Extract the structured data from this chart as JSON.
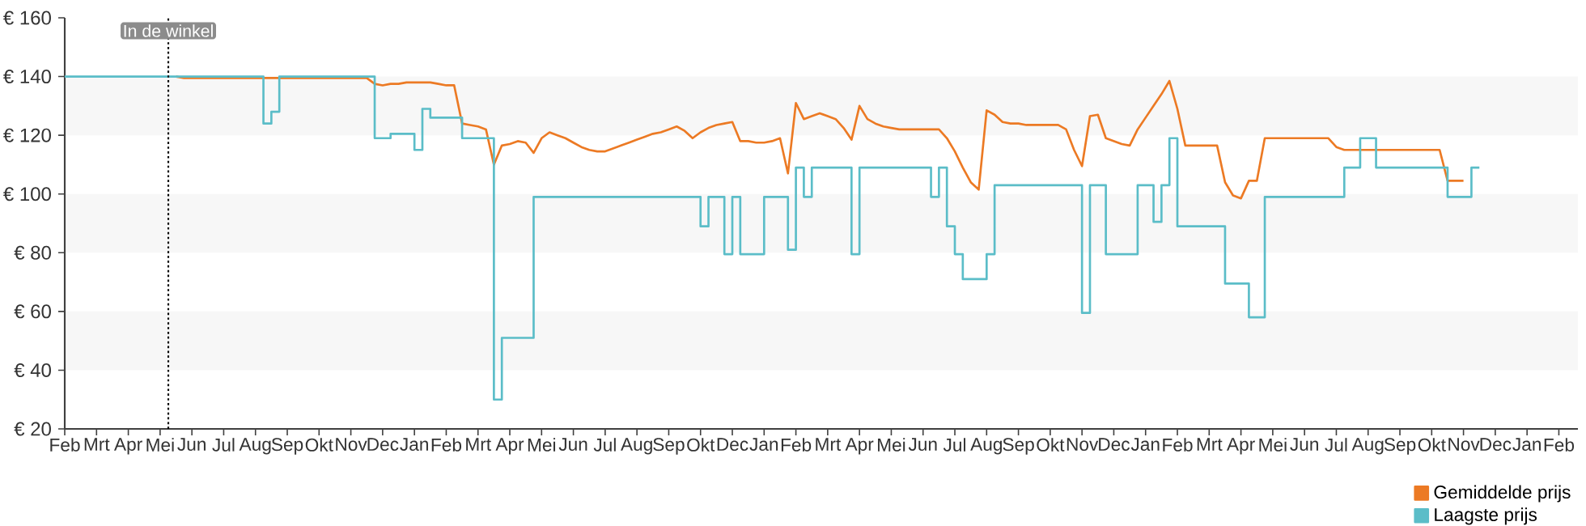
{
  "chart_data": {
    "type": "line",
    "categories": [
      "Feb",
      null,
      null,
      null,
      "Mrt",
      null,
      null,
      null,
      "Apr",
      null,
      null,
      null,
      "Mei",
      null,
      null,
      null,
      "Jun",
      null,
      null,
      null,
      "Jul",
      null,
      null,
      null,
      "Aug",
      null,
      null,
      null,
      "Sep",
      null,
      null,
      null,
      "Okt",
      null,
      null,
      null,
      "Nov",
      null,
      null,
      null,
      "Dec",
      null,
      null,
      null,
      "Jan",
      null,
      null,
      null,
      "Feb",
      null,
      null,
      null,
      "Mrt",
      null,
      null,
      null,
      "Apr",
      null,
      null,
      null,
      "Mei",
      null,
      null,
      null,
      "Jun",
      null,
      null,
      null,
      "Jul",
      null,
      null,
      null,
      "Aug",
      null,
      null,
      null,
      "Sep",
      null,
      null,
      null,
      "Okt",
      null,
      null,
      null,
      "Dec",
      null,
      null,
      null,
      "Jan",
      null,
      null,
      null,
      "Feb",
      null,
      null,
      null,
      "Mrt",
      null,
      null,
      null,
      "Apr",
      null,
      null,
      null,
      "Mei",
      null,
      null,
      null,
      "Jun",
      null,
      null,
      null,
      "Jul",
      null,
      null,
      null,
      "Aug",
      null,
      null,
      null,
      "Sep",
      null,
      null,
      null,
      "Okt",
      null,
      null,
      null,
      "Nov",
      null,
      null,
      null,
      "Dec",
      null,
      null,
      null,
      "Jan",
      null,
      null,
      null,
      "Feb",
      null,
      null,
      null,
      "Mrt",
      null,
      null,
      null,
      "Apr",
      null,
      null,
      null,
      "Mei",
      null,
      null,
      null,
      "Jun",
      null,
      null,
      null,
      "Jul",
      null,
      null,
      null,
      "Aug",
      null,
      null,
      null,
      "Sep",
      null,
      null,
      null,
      "Okt",
      null,
      null,
      null,
      "Nov",
      null,
      null,
      null,
      "Dec",
      null,
      null,
      null,
      "Jan",
      null,
      null,
      null,
      "Feb",
      null,
      null
    ],
    "series": [
      {
        "name": "Gemiddelde prijs",
        "color": "#ec7a24",
        "values": [
          null,
          null,
          null,
          null,
          null,
          null,
          null,
          null,
          null,
          null,
          null,
          null,
          null,
          null,
          140,
          139.5,
          139.5,
          139.5,
          139.5,
          139.5,
          139.5,
          139.5,
          139.5,
          139.5,
          139.5,
          139.5,
          139.5,
          139.5,
          139.5,
          139.5,
          139.5,
          139.5,
          139.5,
          139.5,
          139.5,
          139.5,
          139.5,
          139.5,
          139.5,
          137.5,
          137,
          137.5,
          137.5,
          138,
          138,
          138,
          138,
          137.5,
          137,
          137,
          124,
          123.5,
          123,
          122,
          110,
          116.5,
          117,
          118,
          117.5,
          114,
          119,
          121,
          120,
          119,
          117.5,
          116,
          115,
          114.5,
          114.5,
          115.5,
          116.5,
          117.5,
          118.5,
          119.5,
          120.5,
          121,
          122,
          123,
          121.5,
          119,
          121,
          122.5,
          123.5,
          124,
          124.5,
          118,
          118,
          117.5,
          117.5,
          118,
          119,
          107,
          131,
          125.5,
          126.5,
          127.5,
          126.5,
          125.5,
          122.5,
          118.5,
          130,
          125.5,
          124,
          123,
          122.5,
          122,
          122,
          122,
          122,
          122,
          122,
          119,
          114.5,
          109,
          104,
          101.5,
          128.5,
          127,
          124.5,
          124,
          124,
          123.5,
          123.5,
          123.5,
          123.5,
          123.5,
          122,
          115,
          109.5,
          126.5,
          127,
          119,
          118,
          117,
          116.5,
          122,
          126,
          130,
          134,
          138.5,
          129,
          116.5,
          116.5,
          116.5,
          116.5,
          116.5,
          104,
          99.5,
          98.5,
          104.5,
          104.5,
          119,
          119,
          119,
          119,
          119,
          119,
          119,
          119,
          119,
          116,
          115,
          115,
          115,
          115,
          115,
          115,
          115,
          115,
          115,
          115,
          115,
          115,
          115,
          104.5,
          104.5,
          104.5,
          null,
          null,
          null,
          null,
          null,
          null,
          null,
          null,
          null,
          null,
          null,
          null,
          null,
          null
        ]
      },
      {
        "name": "Laagste prijs",
        "type": "step",
        "color": "#5bbdc8",
        "values": [
          140,
          140,
          140,
          140,
          140,
          140,
          140,
          140,
          140,
          140,
          140,
          140,
          140,
          140,
          140,
          140,
          140,
          140,
          140,
          140,
          140,
          140,
          140,
          140,
          140,
          124,
          128,
          140,
          140,
          140,
          140,
          140,
          140,
          140,
          140,
          140,
          140,
          140,
          140,
          119,
          119,
          120.5,
          120.5,
          120.5,
          115,
          129,
          126,
          126,
          126,
          126,
          119,
          119,
          119,
          119,
          30,
          51,
          51,
          51,
          51,
          99,
          99,
          99,
          99,
          99,
          99,
          99,
          99,
          99,
          99,
          99,
          99,
          99,
          99,
          99,
          99,
          99,
          99,
          99,
          99,
          99,
          89,
          99,
          99,
          79.5,
          99,
          79.5,
          79.5,
          79.5,
          99,
          99,
          99,
          81,
          109,
          99,
          109,
          109,
          109,
          109,
          109,
          79.5,
          109,
          109,
          109,
          109,
          109,
          109,
          109,
          109,
          109,
          99,
          109,
          89,
          79.5,
          71,
          71,
          71,
          79.5,
          103,
          103,
          103,
          103,
          103,
          103,
          103,
          103,
          103,
          103,
          103,
          59.5,
          103,
          103,
          79.5,
          79.5,
          79.5,
          79.5,
          103,
          103,
          90.5,
          103,
          119,
          89,
          89,
          89,
          89,
          89,
          89,
          69.5,
          69.5,
          69.5,
          58,
          58,
          99,
          99,
          99,
          99,
          99,
          99,
          99,
          99,
          99,
          99,
          109,
          109,
          119,
          119,
          109,
          109,
          109,
          109,
          109,
          109,
          109,
          109,
          109,
          99,
          99,
          99,
          109,
          109,
          null,
          null,
          null,
          null,
          null,
          null,
          null,
          null,
          null,
          null,
          null,
          null
        ]
      }
    ],
    "ylim": [
      20,
      160
    ],
    "yticks": [
      {
        "value": 20,
        "label": "€ 20"
      },
      {
        "value": 40,
        "label": "€ 40"
      },
      {
        "value": 60,
        "label": "€ 60"
      },
      {
        "value": 80,
        "label": "€ 80"
      },
      {
        "value": 100,
        "label": "€ 100"
      },
      {
        "value": 120,
        "label": "€ 120"
      },
      {
        "value": 140,
        "label": "€ 140"
      },
      {
        "value": 160,
        "label": "€ 160"
      }
    ],
    "legend": "bottom right",
    "annotations": [
      "In de winkel"
    ]
  }
}
